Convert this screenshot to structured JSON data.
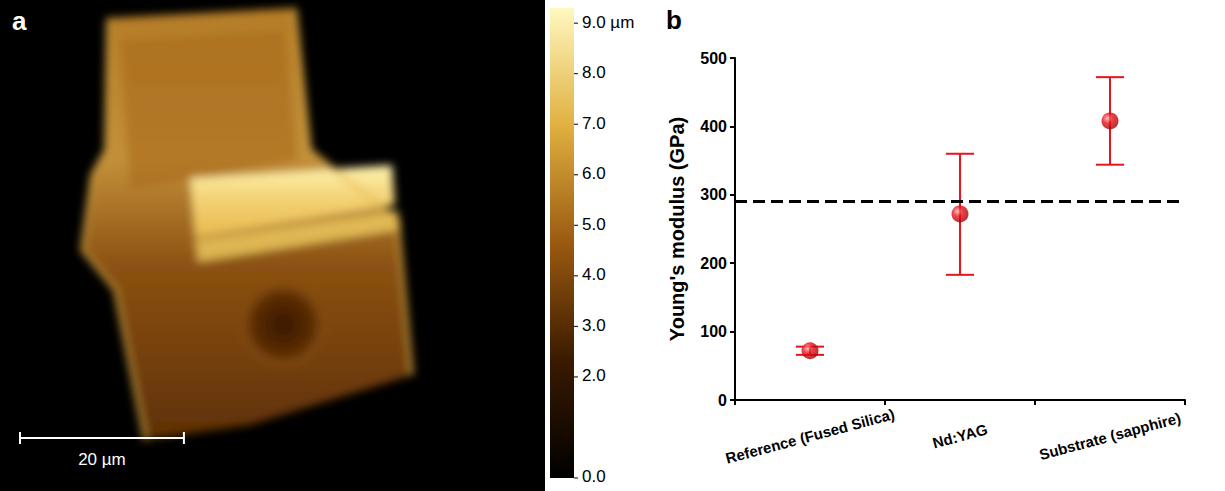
{
  "chart_data": [
    {
      "type": "image",
      "panel": "a",
      "colorbar": {
        "range": [
          0,
          9.3
        ],
        "ticks": [
          {
            "value": 9,
            "label": "9.0 µm"
          },
          {
            "value": 8,
            "label": "8.0"
          },
          {
            "value": 7,
            "label": "7.0"
          },
          {
            "value": 6,
            "label": "6.0"
          },
          {
            "value": 5,
            "label": "5.0"
          },
          {
            "value": 4,
            "label": "4.0"
          },
          {
            "value": 3,
            "label": "3.0"
          },
          {
            "value": 2,
            "label": "2.0"
          },
          {
            "value": 0,
            "label": "0.0"
          }
        ]
      },
      "scale_bar": {
        "label": "20 µm",
        "length": 20
      },
      "field_of_view": 66.5
    },
    {
      "type": "scatter",
      "panel": "b",
      "y_label": "Young's modulus (GPa)",
      "categories": [
        "Reference (Fused Silica)",
        "Nd:YAG",
        "Substrate (sapphire)"
      ],
      "values": [
        72,
        272,
        408
      ],
      "error_low": [
        66,
        183,
        344
      ],
      "error_high": [
        78,
        360,
        472
      ],
      "color": "#e8141c",
      "marker": "circle",
      "ylim": [
        0,
        500
      ],
      "yticks": [
        0,
        100,
        200,
        300,
        400,
        500
      ],
      "grid": false,
      "annotations": [
        {
          "type": "hline",
          "y": 290,
          "line_style": "dashed",
          "color": "#000000"
        }
      ]
    }
  ]
}
